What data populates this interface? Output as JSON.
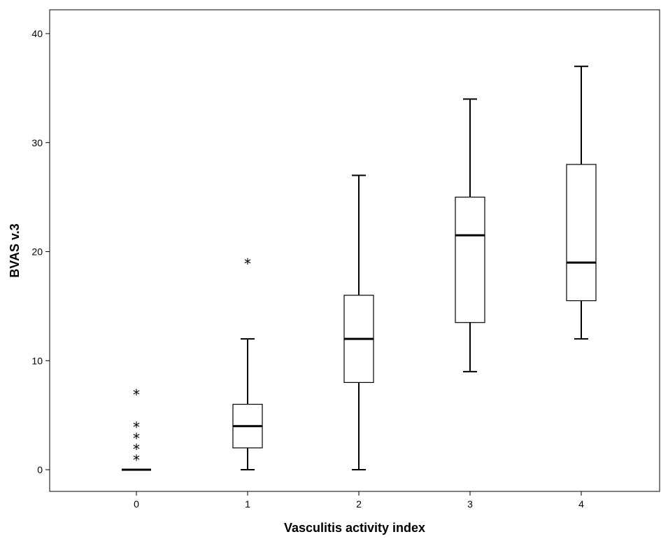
{
  "chart_data": {
    "type": "boxplot",
    "title": "",
    "xlabel": "Vasculitis activity index",
    "ylabel": "BVAS v.3",
    "categories": [
      "0",
      "1",
      "2",
      "3",
      "4"
    ],
    "ylim": [
      -2,
      42.3
    ],
    "yticks": [
      0,
      10,
      20,
      30,
      40
    ],
    "grid": false,
    "boxes": [
      {
        "category": "0",
        "whisker_low": 0,
        "q1": 0,
        "median": 0,
        "q3": 0,
        "whisker_high": 0,
        "outliers": [
          1,
          2,
          3,
          4,
          7
        ]
      },
      {
        "category": "1",
        "whisker_low": 0,
        "q1": 2,
        "median": 4,
        "q3": 6,
        "whisker_high": 12,
        "outliers": [
          19
        ]
      },
      {
        "category": "2",
        "whisker_low": 0,
        "q1": 8,
        "median": 12,
        "q3": 16,
        "whisker_high": 27,
        "outliers": []
      },
      {
        "category": "3",
        "whisker_low": 9,
        "q1": 13.5,
        "median": 21.5,
        "q3": 25,
        "whisker_high": 34,
        "outliers": []
      },
      {
        "category": "4",
        "whisker_low": 12,
        "q1": 15.5,
        "median": 19,
        "q3": 28,
        "whisker_high": 37,
        "outliers": []
      }
    ]
  }
}
